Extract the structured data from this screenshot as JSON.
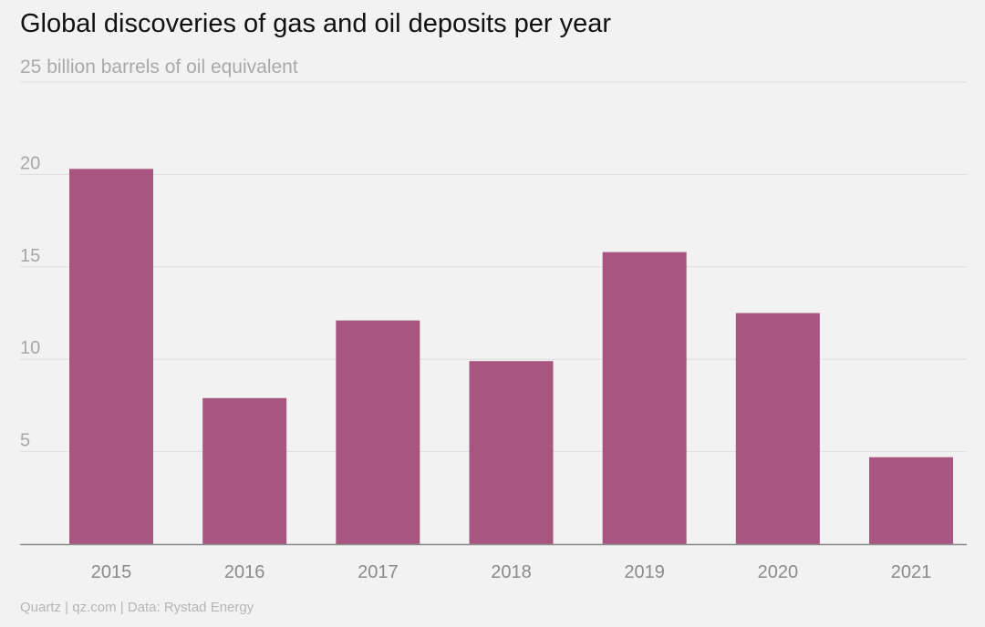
{
  "chart_data": {
    "type": "bar",
    "title": "Global discoveries of gas and oil deposits per year",
    "subtitle": "25 billion barrels of oil equivalent",
    "categories": [
      "2015",
      "2016",
      "2017",
      "2018",
      "2019",
      "2020",
      "2021"
    ],
    "values": [
      20.3,
      7.9,
      12.1,
      9.9,
      15.8,
      12.5,
      4.7
    ],
    "ylim": [
      0,
      25
    ],
    "yticks": [
      5,
      10,
      15,
      20
    ],
    "grid": true,
    "bar_color": "#a8567f",
    "source": "Quartz | qz.com | Data: Rystad Energy"
  }
}
